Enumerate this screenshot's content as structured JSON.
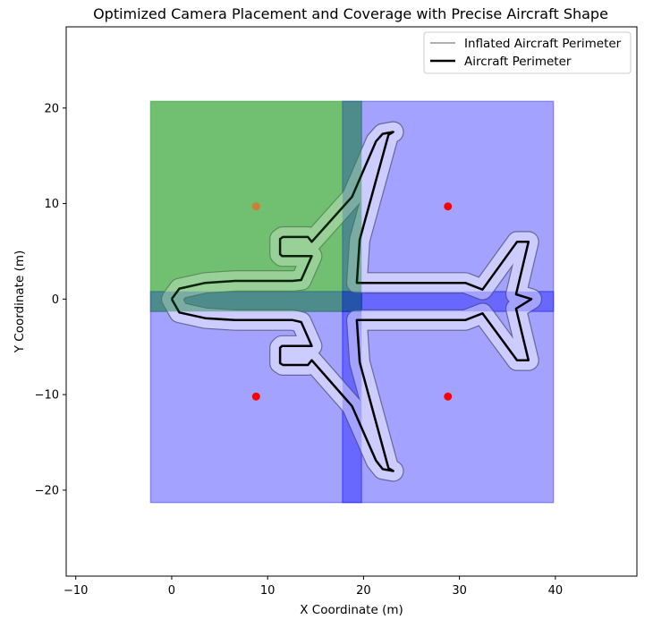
{
  "chart_data": {
    "type": "scatter",
    "title": "Optimized Camera Placement and Coverage with Precise Aircraft Shape",
    "xlabel": "X Coordinate (m)",
    "ylabel": "Y Coordinate (m)",
    "xlim": [
      -11,
      48.5
    ],
    "ylim": [
      -29,
      28.5
    ],
    "xticks": [
      -10,
      0,
      10,
      20,
      30,
      40
    ],
    "yticks": [
      -20,
      -10,
      0,
      10,
      20
    ],
    "xtick_labels": [
      "−10",
      "0",
      "10",
      "20",
      "30",
      "40"
    ],
    "ytick_labels": [
      "−20",
      "−10",
      "0",
      "10",
      "20"
    ],
    "grid": false,
    "legend_position": "top-right",
    "legend": [
      {
        "label": "Inflated Aircraft Perimeter",
        "color": "#808080",
        "style": "thin"
      },
      {
        "label": "Aircraft Perimeter",
        "color": "#000000",
        "style": "thick"
      }
    ],
    "coverage_areas": [
      {
        "x0": -2.2,
        "x1": 19.8,
        "y0": -1.3,
        "y1": 20.7,
        "color": "#2ca02c",
        "opacity": 0.36
      },
      {
        "x0": 17.8,
        "x1": 39.8,
        "y0": -1.3,
        "y1": 20.7,
        "color": "#0000ff",
        "opacity": 0.2
      },
      {
        "x0": -2.2,
        "x1": 19.8,
        "y0": -21.3,
        "y1": 0.8,
        "color": "#0000ff",
        "opacity": 0.2
      },
      {
        "x0": 17.8,
        "x1": 39.8,
        "y0": -21.3,
        "y1": 0.8,
        "color": "#0000ff",
        "opacity": 0.2
      }
    ],
    "cameras": [
      {
        "x": 8.8,
        "y": 9.7,
        "color": "#cd7f32"
      },
      {
        "x": 28.8,
        "y": 9.7,
        "color": "#ff0000"
      },
      {
        "x": 8.8,
        "y": -10.2,
        "color": "#ff0000"
      },
      {
        "x": 28.8,
        "y": -10.2,
        "color": "#ff0000"
      }
    ],
    "aircraft_perimeter": [
      [
        0.0,
        0.0
      ],
      [
        0.8,
        1.1
      ],
      [
        3.5,
        1.7
      ],
      [
        6.6,
        1.9
      ],
      [
        12.6,
        1.9
      ],
      [
        13.5,
        2.0
      ],
      [
        14.6,
        4.5
      ],
      [
        11.5,
        4.5
      ],
      [
        11.3,
        4.7
      ],
      [
        11.3,
        6.3
      ],
      [
        11.6,
        6.5
      ],
      [
        14.2,
        6.5
      ],
      [
        14.6,
        6.0
      ],
      [
        18.8,
        10.7
      ],
      [
        21.3,
        16.5
      ],
      [
        22.0,
        17.3
      ],
      [
        23.1,
        17.5
      ],
      [
        22.6,
        17.2
      ],
      [
        19.6,
        6.2
      ],
      [
        19.3,
        1.7
      ],
      [
        30.6,
        1.7
      ],
      [
        32.4,
        1.0
      ],
      [
        36.0,
        6.0
      ],
      [
        37.2,
        6.0
      ],
      [
        35.9,
        0.5
      ],
      [
        37.5,
        0.0
      ],
      [
        35.9,
        -1.0
      ],
      [
        37.2,
        -6.4
      ],
      [
        36.0,
        -6.4
      ],
      [
        32.4,
        -1.5
      ],
      [
        30.6,
        -2.2
      ],
      [
        19.3,
        -2.2
      ],
      [
        19.6,
        -6.6
      ],
      [
        22.6,
        -17.7
      ],
      [
        23.1,
        -18.0
      ],
      [
        22.0,
        -17.8
      ],
      [
        21.3,
        -16.9
      ],
      [
        18.8,
        -11.2
      ],
      [
        14.6,
        -6.4
      ],
      [
        14.2,
        -6.9
      ],
      [
        11.6,
        -6.9
      ],
      [
        11.3,
        -6.7
      ],
      [
        11.3,
        -5.1
      ],
      [
        11.5,
        -4.9
      ],
      [
        14.6,
        -4.9
      ],
      [
        13.5,
        -2.4
      ],
      [
        12.6,
        -2.2
      ],
      [
        6.6,
        -2.2
      ],
      [
        3.5,
        -2.0
      ],
      [
        0.8,
        -1.4
      ],
      [
        0.0,
        0.0
      ]
    ]
  }
}
